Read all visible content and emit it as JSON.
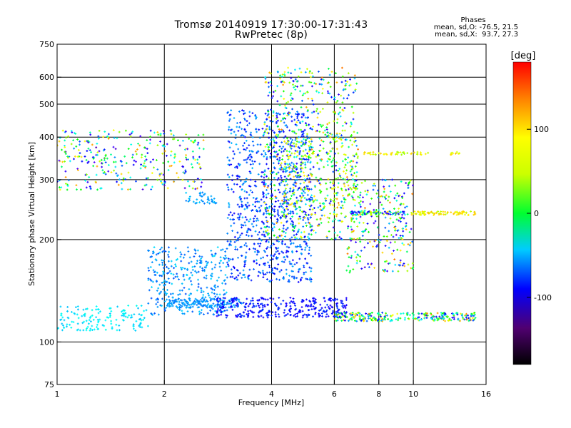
{
  "header": {
    "title_line1": "Tromsø 20140919 17:30:00-17:31:43",
    "title_line2": "RwPretec (8p)",
    "stats_title": "Phases",
    "stats_o": "mean, sd,O: -76.5, 21.5",
    "stats_x": "mean, sd,X:  93.7, 27.3"
  },
  "colorbar": {
    "label": "[deg]",
    "range": [
      -180,
      180
    ],
    "ticks": [
      100,
      0,
      -100
    ]
  },
  "chart_data": {
    "type": "scatter",
    "title": "Tromsø 20140919 17:30:00-17:31:43",
    "subtitle": "RwPretec (8p)",
    "xlabel": "Frequency [MHz]",
    "ylabel": "Stationary phase Virtual Height [km]",
    "x_scale": "log",
    "y_scale": "log",
    "xlim": [
      1,
      16
    ],
    "ylim": [
      75,
      750
    ],
    "x_ticks": [
      1,
      2,
      4,
      6,
      8,
      10,
      16
    ],
    "y_ticks": [
      75,
      100,
      200,
      300,
      400,
      500,
      600,
      750
    ],
    "x_grid": [
      2,
      4,
      6,
      8,
      10
    ],
    "y_grid": [
      100,
      200,
      300,
      400,
      500,
      600
    ],
    "colour_scale": "rainbow",
    "colour_value": "phase [deg]",
    "series": [
      {
        "x_range": [
          1.0,
          1.8
        ],
        "y_range": [
          108,
          128
        ],
        "phase": [
          -40,
          -15
        ],
        "count": 150
      },
      {
        "x_range": [
          1.8,
          3.0
        ],
        "y_range": [
          120,
          190
        ],
        "phase": [
          -70,
          -30
        ],
        "count": 320
      },
      {
        "x_range": [
          2.0,
          3.3
        ],
        "y_range": [
          126,
          134
        ],
        "phase": [
          -60,
          -40
        ],
        "count": 160
      },
      {
        "x_range": [
          2.3,
          2.8
        ],
        "y_range": [
          255,
          275
        ],
        "phase": [
          -60,
          -35
        ],
        "count": 40
      },
      {
        "x_range": [
          2.8,
          6.5
        ],
        "y_range": [
          118,
          135
        ],
        "phase": [
          -110,
          -70
        ],
        "count": 320
      },
      {
        "x_range": [
          6.0,
          15.0
        ],
        "y_range": [
          115,
          122
        ],
        "phase": [
          -110,
          150
        ],
        "count": 260
      },
      {
        "x_range": [
          3.0,
          5.2
        ],
        "y_range": [
          150,
          480
        ],
        "phase": [
          -100,
          -40
        ],
        "count": 900
      },
      {
        "x_range": [
          3.8,
          7.0
        ],
        "y_range": [
          200,
          640
        ],
        "phase": [
          -120,
          150
        ],
        "count": 700
      },
      {
        "x_range": [
          4.3,
          7.0
        ],
        "y_range": [
          230,
          420
        ],
        "phase": [
          60,
          130
        ],
        "count": 150
      },
      {
        "x_range": [
          1.0,
          2.6
        ],
        "y_range": [
          280,
          420
        ],
        "phase": [
          -150,
          140
        ],
        "count": 330
      },
      {
        "x_range": [
          6.5,
          10.0
        ],
        "y_range": [
          160,
          300
        ],
        "phase": [
          -140,
          150
        ],
        "count": 250
      },
      {
        "x_range": [
          6.6,
          9.5
        ],
        "y_range": [
          236,
          242
        ],
        "phase": [
          -120,
          130
        ],
        "count": 80
      },
      {
        "x_range": [
          9.8,
          15.0
        ],
        "y_range": [
          236,
          242
        ],
        "phase": [
          90,
          130
        ],
        "count": 80
      },
      {
        "x_range": [
          7.2,
          11.0
        ],
        "y_range": [
          355,
          362
        ],
        "phase": [
          80,
          130
        ],
        "count": 45
      },
      {
        "x_range": [
          12.5,
          13.5
        ],
        "y_range": [
          355,
          362
        ],
        "phase": [
          100,
          130
        ],
        "count": 10
      }
    ]
  }
}
